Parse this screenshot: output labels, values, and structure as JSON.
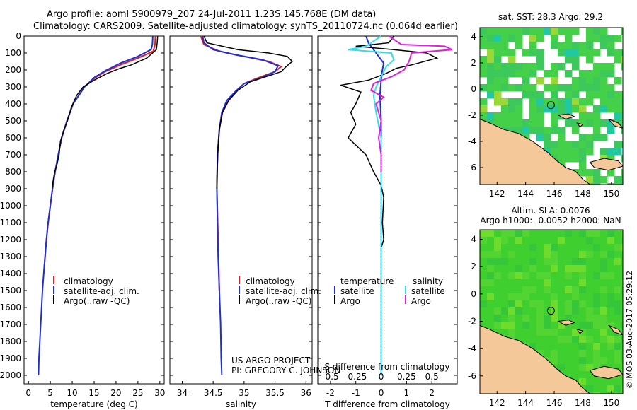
{
  "title": {
    "line1": "Argo profile: aoml 5900979_207 24-Jul-2011 1.23S 145.768E (DM data)",
    "line2": "Climatology: CARS2009. Satellite-adjusted climatology: synTS_20110724.nc (0.064d earlier)"
  },
  "colors": {
    "climatology": "#e02020",
    "satellite": "#1f2fd8",
    "argo": "#000000",
    "satellite_salinity": "#33ddee",
    "argo_salinity": "#e020e0",
    "land": "#f5c89a"
  },
  "chart_data": [
    {
      "id": "temperature",
      "type": "line",
      "xlabel": "temperature (deg C)",
      "ylim": [
        0,
        2050
      ],
      "xlim": [
        -1,
        31
      ],
      "xticks": [
        0,
        5,
        10,
        15,
        20,
        25,
        30
      ],
      "yticks": [
        0,
        100,
        200,
        300,
        400,
        500,
        600,
        700,
        800,
        900,
        1000,
        1100,
        1200,
        1300,
        1400,
        1500,
        1600,
        1700,
        1800,
        1900,
        2000
      ],
      "legend": [
        "climatology",
        "satellite-adj. clim.",
        "Argo(..raw -QC)"
      ],
      "series": [
        {
          "name": "climatology",
          "color": "#e02020",
          "points": [
            [
              29.0,
              0
            ],
            [
              28.9,
              50
            ],
            [
              28.5,
              90
            ],
            [
              25,
              130
            ],
            [
              21,
              170
            ],
            [
              17.5,
              210
            ],
            [
              15,
              250
            ],
            [
              12.8,
              300
            ],
            [
              10.2,
              400
            ],
            [
              8.8,
              500
            ],
            [
              7.6,
              600
            ],
            [
              6.8,
              700
            ],
            [
              6.1,
              800
            ],
            [
              5.5,
              900
            ],
            [
              5.0,
              1000
            ],
            [
              4.5,
              1100
            ],
            [
              4.1,
              1200
            ],
            [
              3.8,
              1300
            ],
            [
              3.5,
              1400
            ]
          ]
        },
        {
          "name": "satellite-adj. clim.",
          "color": "#1f2fd8",
          "points": [
            [
              28.4,
              0
            ],
            [
              28.3,
              50
            ],
            [
              28.0,
              80
            ],
            [
              25,
              120
            ],
            [
              21,
              160
            ],
            [
              17.5,
              205
            ],
            [
              15,
              245
            ],
            [
              12.8,
              300
            ],
            [
              10.2,
              400
            ],
            [
              8.8,
              500
            ],
            [
              7.6,
              600
            ],
            [
              6.8,
              700
            ],
            [
              6.1,
              800
            ],
            [
              5.5,
              900
            ],
            [
              5.0,
              1000
            ],
            [
              4.5,
              1100
            ],
            [
              4.1,
              1200
            ],
            [
              3.8,
              1300
            ],
            [
              3.5,
              1400
            ],
            [
              3.2,
              1500
            ],
            [
              3.0,
              1600
            ],
            [
              2.8,
              1700
            ],
            [
              2.6,
              1800
            ],
            [
              2.4,
              1900
            ],
            [
              2.3,
              2000
            ]
          ]
        },
        {
          "name": "Argo(..raw -QC)",
          "color": "#000000",
          "points": [
            [
              29.5,
              0
            ],
            [
              29.4,
              40
            ],
            [
              29.2,
              80
            ],
            [
              27,
              130
            ],
            [
              23.5,
              170
            ],
            [
              21,
              190
            ],
            [
              18,
              220
            ],
            [
              15,
              260
            ],
            [
              12.5,
              300
            ],
            [
              11,
              350
            ],
            [
              9.8,
              420
            ],
            [
              8.9,
              500
            ],
            [
              8.0,
              560
            ],
            [
              7.3,
              620
            ],
            [
              7.0,
              700
            ],
            [
              6.5,
              760
            ],
            [
              6.0,
              800
            ],
            [
              5.6,
              860
            ],
            [
              5.4,
              900
            ]
          ]
        }
      ]
    },
    {
      "id": "salinity",
      "type": "line",
      "xlabel": "salinity",
      "ylim": [
        0,
        2050
      ],
      "xlim": [
        33.8,
        36.1
      ],
      "xticks": [
        34,
        34.5,
        35,
        35.5,
        36
      ],
      "legend": [
        "climatology",
        "satellite-adj. clim.",
        "Argo(..raw -QC)"
      ],
      "annotation": [
        "US ARGO PROJECT",
        "PI: GREGORY C. JOHNSON"
      ],
      "series": [
        {
          "name": "climatology",
          "color": "#e02020",
          "points": [
            [
              34.3,
              0
            ],
            [
              34.35,
              50
            ],
            [
              34.6,
              90
            ],
            [
              35.0,
              120
            ],
            [
              35.4,
              150
            ],
            [
              35.6,
              180
            ],
            [
              35.5,
              210
            ],
            [
              35.2,
              250
            ],
            [
              35.0,
              280
            ],
            [
              34.85,
              330
            ],
            [
              34.75,
              380
            ],
            [
              34.65,
              450
            ],
            [
              34.6,
              550
            ],
            [
              34.57,
              700
            ],
            [
              34.56,
              900
            ],
            [
              34.58,
              1200
            ],
            [
              34.6,
              1500
            ]
          ]
        },
        {
          "name": "satellite-adj. clim.",
          "color": "#1f2fd8",
          "points": [
            [
              34.33,
              0
            ],
            [
              34.35,
              40
            ],
            [
              34.5,
              80
            ],
            [
              34.85,
              110
            ],
            [
              35.3,
              140
            ],
            [
              35.55,
              175
            ],
            [
              35.5,
              210
            ],
            [
              35.25,
              250
            ],
            [
              35.0,
              280
            ],
            [
              34.85,
              330
            ],
            [
              34.72,
              380
            ],
            [
              34.64,
              450
            ],
            [
              34.6,
              550
            ],
            [
              34.57,
              700
            ],
            [
              34.56,
              900
            ],
            [
              34.57,
              1100
            ],
            [
              34.58,
              1300
            ],
            [
              34.6,
              1500
            ],
            [
              34.62,
              1700
            ],
            [
              34.63,
              1900
            ],
            [
              34.64,
              2000
            ]
          ]
        },
        {
          "name": "Argo(..raw -QC)",
          "color": "#000000",
          "points": [
            [
              34.35,
              0
            ],
            [
              34.4,
              40
            ],
            [
              34.9,
              80
            ],
            [
              35.4,
              100
            ],
            [
              35.7,
              120
            ],
            [
              35.78,
              150
            ],
            [
              35.68,
              180
            ],
            [
              35.6,
              210
            ],
            [
              35.35,
              240
            ],
            [
              35.1,
              270
            ],
            [
              34.9,
              320
            ],
            [
              34.75,
              380
            ],
            [
              34.65,
              450
            ],
            [
              34.6,
              550
            ],
            [
              34.58,
              650
            ],
            [
              34.57,
              750
            ],
            [
              34.56,
              850
            ],
            [
              34.56,
              900
            ]
          ]
        }
      ]
    },
    {
      "id": "differences",
      "type": "line",
      "xlabel_bottom": "T difference from climatology",
      "xlabel_top": "S difference from climatology",
      "xlim": [
        -2.5,
        3.0
      ],
      "xticks_bottom": [
        -2,
        -1,
        0,
        1,
        2
      ],
      "xticks_top": [
        [
          "-0.5",
          -2.0
        ],
        [
          "-0.25",
          -1.0
        ],
        [
          "0",
          0.0
        ],
        [
          "0.25",
          1.0
        ],
        [
          "0.5",
          2.0
        ]
      ],
      "legend_header": [
        "temperature",
        "salinity"
      ],
      "legend": [
        "satellite",
        "Argo",
        "satellite",
        "Argo"
      ],
      "series": [
        {
          "name": "T satellite",
          "color": "#1f2fd8",
          "points": [
            [
              -0.6,
              0
            ],
            [
              -0.5,
              40
            ],
            [
              -0.3,
              80
            ],
            [
              -0.1,
              120
            ],
            [
              0.1,
              160
            ],
            [
              0.05,
              200
            ],
            [
              0.0,
              260
            ],
            [
              -0.05,
              350
            ],
            [
              0.0,
              500
            ],
            [
              0.0,
              800
            ],
            [
              0.0,
              1200
            ],
            [
              0.0,
              1600
            ],
            [
              0.0,
              2000
            ]
          ]
        },
        {
          "name": "T Argo",
          "color": "#000000",
          "points": [
            [
              0.5,
              0
            ],
            [
              0.3,
              40
            ],
            [
              -1.0,
              60
            ],
            [
              0.5,
              80
            ],
            [
              1.8,
              100
            ],
            [
              2.2,
              130
            ],
            [
              1.2,
              170
            ],
            [
              0.6,
              190
            ],
            [
              0.2,
              220
            ],
            [
              -0.5,
              260
            ],
            [
              -1.6,
              290
            ],
            [
              -0.8,
              330
            ],
            [
              -1.0,
              400
            ],
            [
              -1.2,
              450
            ],
            [
              -1.0,
              520
            ],
            [
              -1.3,
              600
            ],
            [
              -0.6,
              700
            ],
            [
              -0.3,
              800
            ],
            [
              0.0,
              880
            ],
            [
              0.1,
              950
            ],
            [
              0.05,
              1100
            ],
            [
              0.1,
              1200
            ],
            [
              0.0,
              1250
            ]
          ]
        },
        {
          "name": "S satellite",
          "color": "#33ddee",
          "points": [
            [
              0.0,
              0
            ],
            [
              -0.6,
              60
            ],
            [
              -1.3,
              80
            ],
            [
              0.4,
              100
            ],
            [
              0.5,
              140
            ],
            [
              0.2,
              180
            ],
            [
              0.0,
              240
            ],
            [
              -0.2,
              300
            ],
            [
              -0.3,
              350
            ],
            [
              -0.2,
              450
            ],
            [
              0.0,
              600
            ],
            [
              0.0,
              900
            ],
            [
              0.0,
              1200
            ],
            [
              0.0,
              1600
            ],
            [
              0.0,
              2000
            ]
          ]
        },
        {
          "name": "S Argo",
          "color": "#e020e0",
          "points": [
            [
              0.3,
              0
            ],
            [
              0.8,
              50
            ],
            [
              2.5,
              60
            ],
            [
              2.8,
              80
            ],
            [
              1.2,
              100
            ],
            [
              1.1,
              150
            ],
            [
              0.9,
              200
            ],
            [
              0.4,
              240
            ],
            [
              -0.3,
              280
            ],
            [
              -0.4,
              320
            ],
            [
              0.1,
              360
            ],
            [
              -0.2,
              400
            ],
            [
              0.0,
              500
            ],
            [
              -0.1,
              600
            ],
            [
              0.0,
              700
            ],
            [
              0.0,
              800
            ]
          ]
        }
      ]
    },
    {
      "id": "sst_map",
      "type": "heatmap",
      "title": "sat. SST: 28.3 Argo: 29.2",
      "xlim": [
        140.8,
        150.8
      ],
      "ylim": [
        -7.3,
        4.7
      ],
      "xticks": [
        142,
        144,
        146,
        148,
        150
      ],
      "yticks": [
        -6,
        -4,
        -2,
        0,
        2,
        4
      ],
      "argo_position": [
        145.768,
        -1.23
      ]
    },
    {
      "id": "sla_map",
      "type": "heatmap",
      "title_line1": "Altim. SLA: 0.0076",
      "title_line2": "Argo h1000: -0.0052 h2000: NaN",
      "xlim": [
        140.8,
        150.8
      ],
      "ylim": [
        -7.3,
        4.7
      ],
      "xticks": [
        142,
        144,
        146,
        148,
        150
      ],
      "yticks": [
        -6,
        -4,
        -2,
        0,
        2,
        4
      ],
      "argo_position": [
        145.768,
        -1.23
      ]
    }
  ],
  "footer": {
    "stamp": "©IMOS 03-Aug-2017 05:29:12"
  }
}
